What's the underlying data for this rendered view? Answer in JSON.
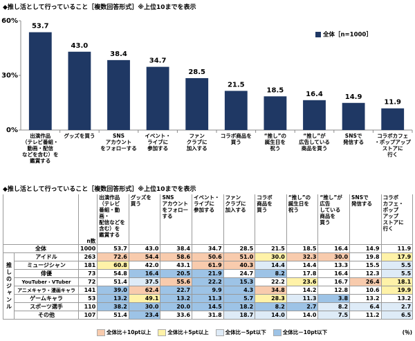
{
  "chart_data": {
    "type": "bar",
    "title": "◆推し活として行っていること［複数回答形式］※上位10までを表示",
    "categories": [
      "出演作品\n（テレビ番組・\n動画・配信\nなどを含む）を\n鑑賞する",
      "グッズを買う",
      "SNS\nアカウント\nをフォローする",
      "イベント・\nライブに\n参加する",
      "ファン\nクラブに\n加入する",
      "コラボ商品を\n買う",
      "“推し”の\n誕生日を\n祝う",
      "“推し”が\n広告している\n商品を買う",
      "SNSで\n発信する",
      "コラボカフェ\n・ポップアップ\nストアに\n行く"
    ],
    "series": [
      {
        "name": "全体［n=1000］",
        "color": "#1f3864",
        "values": [
          53.7,
          43.0,
          38.4,
          34.7,
          28.5,
          21.5,
          18.5,
          16.4,
          14.9,
          11.9
        ],
        "value_labels": [
          "53.7",
          "43.0",
          "38.4",
          "34.7",
          "28.5",
          "21.5",
          "18.5",
          "16.4",
          "14.9",
          "11.9"
        ]
      }
    ],
    "ylim": [
      0,
      60
    ],
    "yticks": [
      {
        "value": 0,
        "label": "0%"
      },
      {
        "value": 30,
        "label": "30%"
      },
      {
        "value": 60,
        "label": "60%"
      }
    ],
    "legend": "upper right"
  },
  "table": {
    "title": "◆推し活として行っていること［複数回答形式］※上位10までを表示",
    "n_header": "n数",
    "columns": [
      "出演作品\n（テレビ\n番組・動画・\n配信などを\n含む）を\n鑑賞する",
      "グッズを\n買う",
      "SNS\nアカウント\nをフォロー\nする",
      "イベント・\nライブに\n参加する",
      "ファン\nクラブに\n加入する",
      "コラボ\n商品を\n買う",
      "“推し”の\n誕生日を\n祝う",
      "“推し”が\n広告\nしている\n商品を\n買う",
      "SNSで\n発信する",
      "コラボ\nカフェ・\nポップ\nアップ\nストアに\n行く"
    ],
    "group_label": "推しのジャンル",
    "rows": [
      {
        "label": "全体",
        "cells": [
          "1000",
          "53.7",
          "43.0",
          "38.4",
          "34.7",
          "28.5",
          "21.5",
          "18.5",
          "16.4",
          "14.9",
          "11.9"
        ]
      },
      {
        "label": "アイドル",
        "cells": [
          "263",
          "72.6",
          "54.4",
          "58.6",
          "50.6",
          "51.0",
          "30.0",
          "32.3",
          "30.0",
          "19.8",
          "17.9"
        ]
      },
      {
        "label": "ミュージシャン",
        "cells": [
          "181",
          "60.8",
          "42.0",
          "43.1",
          "61.9",
          "40.3",
          "14.4",
          "14.4",
          "13.3",
          "15.5",
          "5.5"
        ]
      },
      {
        "label": "俳優",
        "cells": [
          "73",
          "54.8",
          "16.4",
          "20.5",
          "21.9",
          "24.7",
          "8.2",
          "17.8",
          "16.4",
          "12.3",
          "5.5"
        ]
      },
      {
        "label": "YouTuber・VTuber",
        "cells": [
          "72",
          "51.4",
          "37.5",
          "55.6",
          "22.2",
          "15.3",
          "22.2",
          "23.6",
          "16.7",
          "26.4",
          "18.1"
        ]
      },
      {
        "label": "アニメキャラ・漫画キャラ",
        "cells": [
          "141",
          "39.0",
          "62.4",
          "22.7",
          "9.9",
          "4.3",
          "34.8",
          "14.2",
          "12.8",
          "10.6",
          "19.9"
        ]
      },
      {
        "label": "ゲームキャラ",
        "cells": [
          "53",
          "13.2",
          "49.1",
          "13.2",
          "11.3",
          "5.7",
          "28.3",
          "11.3",
          "3.8",
          "13.2",
          "13.2"
        ]
      },
      {
        "label": "スポーツ選手",
        "cells": [
          "110",
          "38.2",
          "30.0",
          "20.0",
          "14.5",
          "18.2",
          "8.2",
          "2.7",
          "8.2",
          "6.4",
          "2.7"
        ]
      },
      {
        "label": "その他",
        "cells": [
          "107",
          "51.4",
          "23.4",
          "33.6",
          "31.8",
          "18.7",
          "14.0",
          "14.0",
          "7.5",
          "11.2",
          "6.5"
        ]
      }
    ],
    "legend": [
      {
        "label": "全体比＋10pt以上",
        "value": 10,
        "color": "#f8cbad"
      },
      {
        "label": "全体比＋5pt以上",
        "value": 5,
        "color": "#fff2a8"
      },
      {
        "label": "全体比－5pt以下",
        "value": -5,
        "color": "#deebf7"
      },
      {
        "label": "全体比－10pt以下",
        "value": -10,
        "color": "#9dc3e6"
      }
    ],
    "unit": "(％)"
  }
}
